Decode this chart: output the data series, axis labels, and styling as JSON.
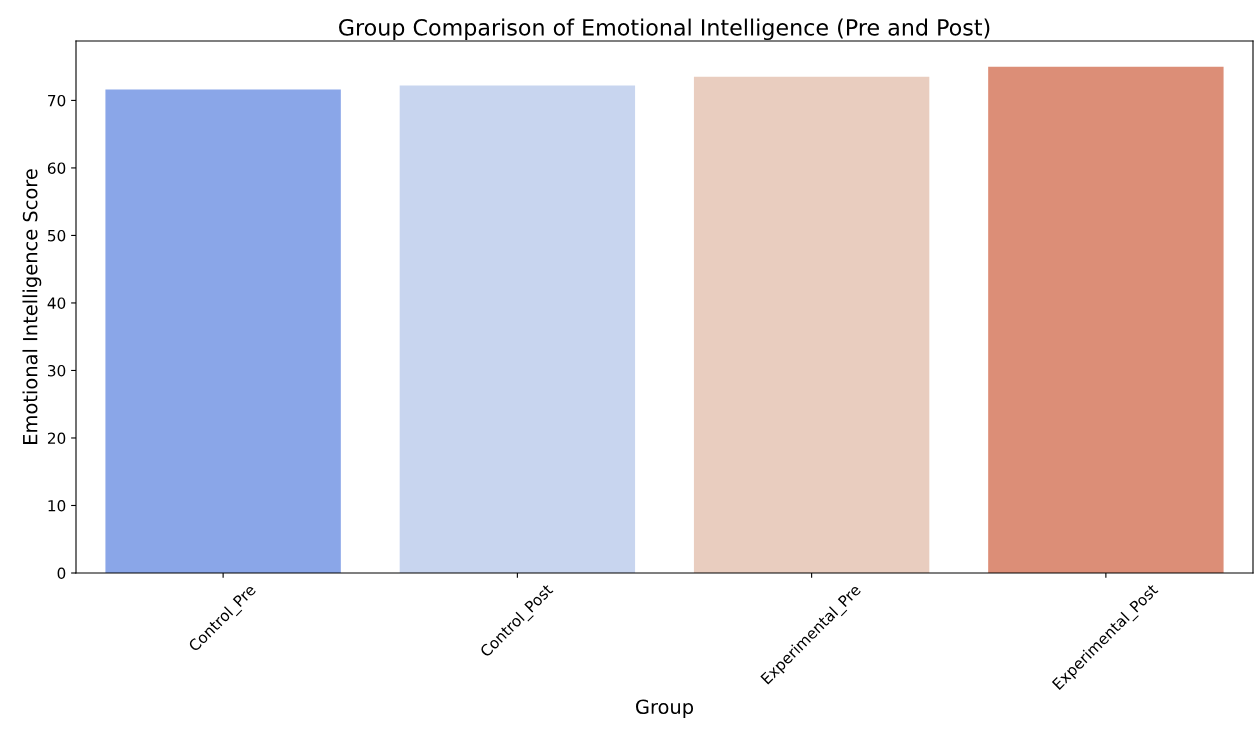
{
  "chart_data": {
    "type": "bar",
    "title": "Group Comparison of Emotional Intelligence (Pre and Post)",
    "xlabel": "Group",
    "ylabel": "Emotional Intelligence Score",
    "categories": [
      "Control_Pre",
      "Control_Post",
      "Experimental_Pre",
      "Experimental_Post"
    ],
    "values": [
      71.6,
      72.2,
      73.5,
      75.0
    ],
    "colors": [
      "#8aa6e8",
      "#c8d5ef",
      "#e9cdbf",
      "#dc8e77"
    ],
    "ylim": [
      0,
      78.8
    ],
    "yticks": [
      0,
      10,
      20,
      30,
      40,
      50,
      60,
      70
    ],
    "grid": false,
    "legend": false
  }
}
